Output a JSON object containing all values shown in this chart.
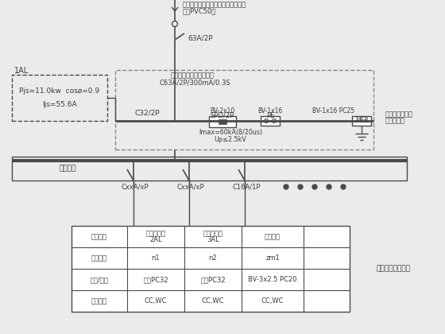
{
  "bg_color": "#ebebeb",
  "line_color": "#4a4a4a",
  "text_color": "#3a3a3a",
  "title_top": "电源引入：详见小区供电电缆明细表",
  "title_top2": "预埋PVC50管",
  "breaker_top": "63A/2P",
  "box_label": "1AL",
  "box_text1": "Pjs=11.0kw  cosø=0.9",
  "box_text2": "Ijs=55.6A",
  "dashed_box_label": "带隔离功能的塑壳断路器",
  "dashed_box_label2": "C63A/2P/300mA/0.3S",
  "c32_label": "C32/2P",
  "spd_label": "SPD/2P",
  "pe_label": "PE",
  "bv2x10": "BV-2x10",
  "bv1x16a": "BV-1x16",
  "bv1x16b": "BV-1x16 PC25",
  "imax_label": "Imax=60kA(8/20us)",
  "up_label": "Up≤2.5kV",
  "meb_label": "MEB",
  "meb_text": "等电位接地母排",
  "meb_text2": "详防雷设计",
  "bus_label": "业主自理",
  "branch1_label": "CxxA/xP",
  "branch2_label": "CxxA/xP",
  "branch3_label": "C16A/1P",
  "table_col0": "回路名称",
  "table_col0b": "",
  "table_r0c1a": "二层配电箱",
  "table_r0c1b": "2AL",
  "table_r0c2a": "三层配电箱",
  "table_r0c2b": "3AL",
  "table_r0c3": "一层照明",
  "table_r1c0": "回路编号",
  "table_r1c1": "n1",
  "table_r1c2": "n2",
  "table_r1c3": "zm1",
  "table_r2c0": "导线/管径",
  "table_r2c1": "预埋PC32",
  "table_r2c2": "预埋PC32",
  "table_r2c3": "BV-3x2.5 PC20",
  "table_r3c0": "敷设方式",
  "table_r3c1": "CC,WC",
  "table_r3c2": "CC,WC",
  "table_r3c3": "CC,WC",
  "table_note": "按甲方要求待业主"
}
